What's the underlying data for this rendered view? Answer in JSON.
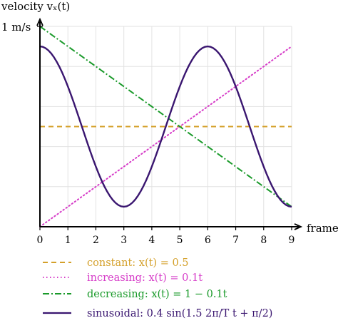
{
  "chart_data": {
    "type": "line",
    "xlabel": "frame",
    "ylabel": "velocity vₓ(t)",
    "ytick_label": "1 m/s",
    "xlim": [
      0,
      9
    ],
    "ylim": [
      0,
      1
    ],
    "xticks": [
      "0",
      "1",
      "2",
      "3",
      "4",
      "5",
      "6",
      "7",
      "8",
      "9"
    ],
    "grid": true,
    "legend_placement": "bottom",
    "sinusoid_samples": 91,
    "series": [
      {
        "name": "constant: x(t) = 0.5",
        "color": "#d4a02a",
        "dash": "dashed",
        "x": [
          0,
          9
        ],
        "y": [
          0.5,
          0.5
        ]
      },
      {
        "name": "increasing: x(t) = 0.1t",
        "color": "#d63cc8",
        "dash": "dotted",
        "x": [
          0,
          9
        ],
        "y": [
          0,
          0.9
        ]
      },
      {
        "name": "decreasing: x(t) = 1 − 0.1t",
        "color": "#1a9a2a",
        "dash": "dashdot",
        "x": [
          0,
          9
        ],
        "y": [
          1,
          0.1
        ]
      },
      {
        "name": "sinusoidal: 0.4 sin(1.5 2π/T t + π/2)",
        "color": "#3a1670",
        "dash": "solid",
        "function": "0.5 + 0.4*cos(2*pi*x/6)",
        "x_range": [
          0,
          9
        ],
        "y_min": 0.1,
        "y_max": 0.9
      }
    ]
  }
}
